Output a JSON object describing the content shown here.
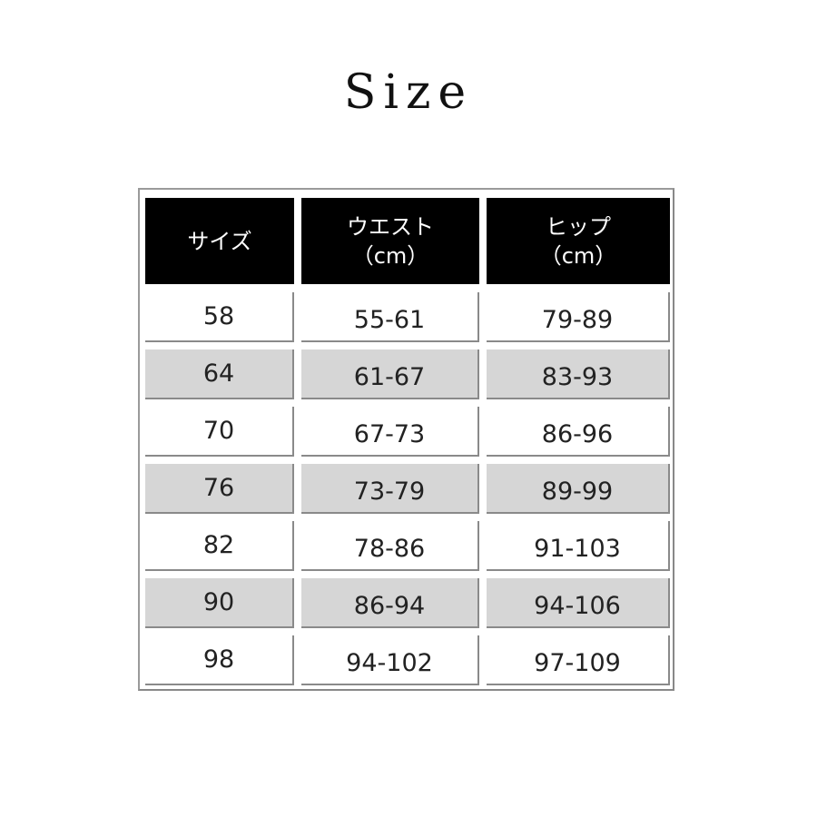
{
  "title": "Size",
  "table": {
    "headers": [
      {
        "line1": "サイズ",
        "line2": ""
      },
      {
        "line1": "ウエスト",
        "line2": "（cm）"
      },
      {
        "line1": "ヒップ",
        "line2": "（cm）"
      }
    ],
    "rows": [
      [
        "58",
        "55-61",
        "79-89"
      ],
      [
        "64",
        "61-67",
        "83-93"
      ],
      [
        "70",
        "67-73",
        "86-96"
      ],
      [
        "76",
        "73-79",
        "89-99"
      ],
      [
        "82",
        "78-86",
        "91-103"
      ],
      [
        "90",
        "86-94",
        "94-106"
      ],
      [
        "98",
        "94-102",
        "97-109"
      ]
    ],
    "colors": {
      "header_bg": "#000000",
      "stripe_bg": "#d6d6d6",
      "row_bg": "#ffffff"
    }
  }
}
